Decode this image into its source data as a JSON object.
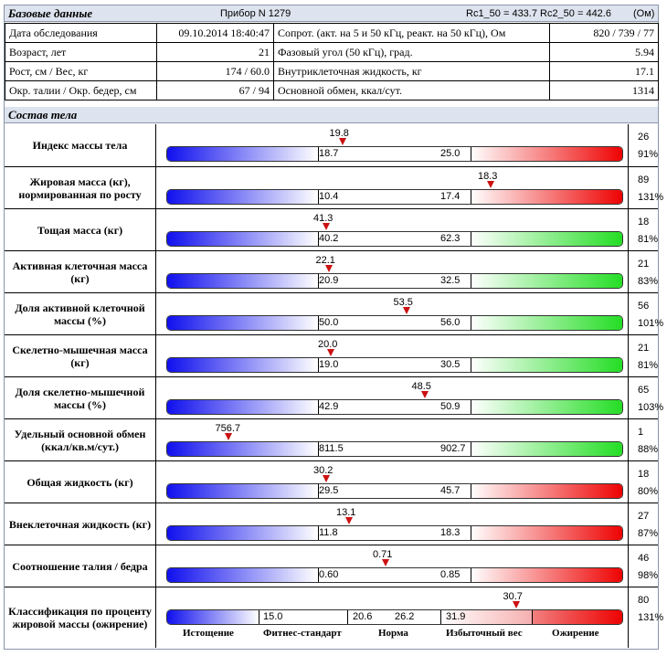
{
  "header": {
    "title": "Базовые данные",
    "device": "Прибор N  1279",
    "rc1": "Rc1_50 = 433.7",
    "rc2": "Rc2_50 = 442.6",
    "unit": "(Ом)"
  },
  "info": {
    "rows": [
      {
        "l1": "Дата обследования",
        "v1": "09.10.2014 18:40:47",
        "l2": "Сопрот. (акт. на 5 и 50 кГц, реакт. на 50 кГц), Ом",
        "v2": "820 / 739 / 77"
      },
      {
        "l1": "Возраст, лет",
        "v1": "21",
        "l2": "Фазовый угол (50 кГц), град.",
        "v2": "5.94"
      },
      {
        "l1": "Рост, см / Вес, кг",
        "v1": "174 / 60.0",
        "l2": "Внутриклеточная жидкость, кг",
        "v2": "17.1"
      },
      {
        "l1": "Окр. талии / Окр. бедер, см",
        "v1": "67 / 94",
        "l2": "Основной обмен, ккал/сут.",
        "v2": "1314"
      }
    ]
  },
  "composition": {
    "title": "Состав тела",
    "colors": {
      "low": "#1010ee",
      "high_bad": "#ee0000",
      "high_good": "#22dd22"
    },
    "rows": [
      {
        "label": "Индекс массы тела",
        "value": "19.8",
        "low": "18.7",
        "high": "25.0",
        "right_top": "26",
        "right_bottom": "91%",
        "high_color": "red",
        "marker_pos": 0.385
      },
      {
        "label": "Жировая масса (кг), нормированная по росту",
        "value": "18.3",
        "low": "10.4",
        "high": "17.4",
        "right_top": "89",
        "right_bottom": "131%",
        "high_color": "red",
        "marker_pos": 0.71
      },
      {
        "label": "Тощая масса (кг)",
        "value": "41.3",
        "low": "40.2",
        "high": "62.3",
        "right_top": "18",
        "right_bottom": "81%",
        "high_color": "green",
        "marker_pos": 0.35
      },
      {
        "label": "Активная клеточная масса (кг)",
        "value": "22.1",
        "low": "20.9",
        "high": "32.5",
        "right_top": "21",
        "right_bottom": "83%",
        "high_color": "green",
        "marker_pos": 0.355
      },
      {
        "label": "Доля активной клеточной массы (%)",
        "value": "53.5",
        "low": "50.0",
        "high": "56.0",
        "right_top": "56",
        "right_bottom": "101%",
        "high_color": "green",
        "marker_pos": 0.525
      },
      {
        "label": "Скелетно-мышечная масса (кг)",
        "value": "20.0",
        "low": "19.0",
        "high": "30.5",
        "right_top": "21",
        "right_bottom": "81%",
        "high_color": "green",
        "marker_pos": 0.36
      },
      {
        "label": "Доля скелетно-мышечной массы (%)",
        "value": "48.5",
        "low": "42.9",
        "high": "50.9",
        "right_top": "65",
        "right_bottom": "103%",
        "high_color": "green",
        "marker_pos": 0.565
      },
      {
        "label": "Удельный основной обмен (ккал/кв.м/сут.)",
        "value": "756.7",
        "low": "811.5",
        "high": "902.7",
        "right_top": "1",
        "right_bottom": "88%",
        "high_color": "green",
        "marker_pos": 0.135
      },
      {
        "label": "Общая жидкость (кг)",
        "value": "30.2",
        "low": "29.5",
        "high": "45.7",
        "right_top": "18",
        "right_bottom": "80%",
        "high_color": "red",
        "marker_pos": 0.35
      },
      {
        "label": "Внеклеточная жидкость (кг)",
        "value": "13.1",
        "low": "11.8",
        "high": "18.3",
        "right_top": "27",
        "right_bottom": "87%",
        "high_color": "red",
        "marker_pos": 0.4
      },
      {
        "label": "Соотношение талия / бедра",
        "value": "0.71",
        "low": "0.60",
        "high": "0.85",
        "right_top": "46",
        "right_bottom": "98%",
        "high_color": "red",
        "marker_pos": 0.48
      }
    ],
    "classification": {
      "label": "Классификация по проценту жировой массы (ожирение)",
      "value": "30.7",
      "thresholds": [
        "15.0",
        "20.6",
        "26.2",
        "31.9"
      ],
      "categories": [
        "Истощение",
        "Фитнес-стандарт",
        "Норма",
        "Избыточный вес",
        "Ожирение"
      ],
      "right_top": "80",
      "right_bottom": "131%",
      "marker_pos": 0.765
    }
  }
}
